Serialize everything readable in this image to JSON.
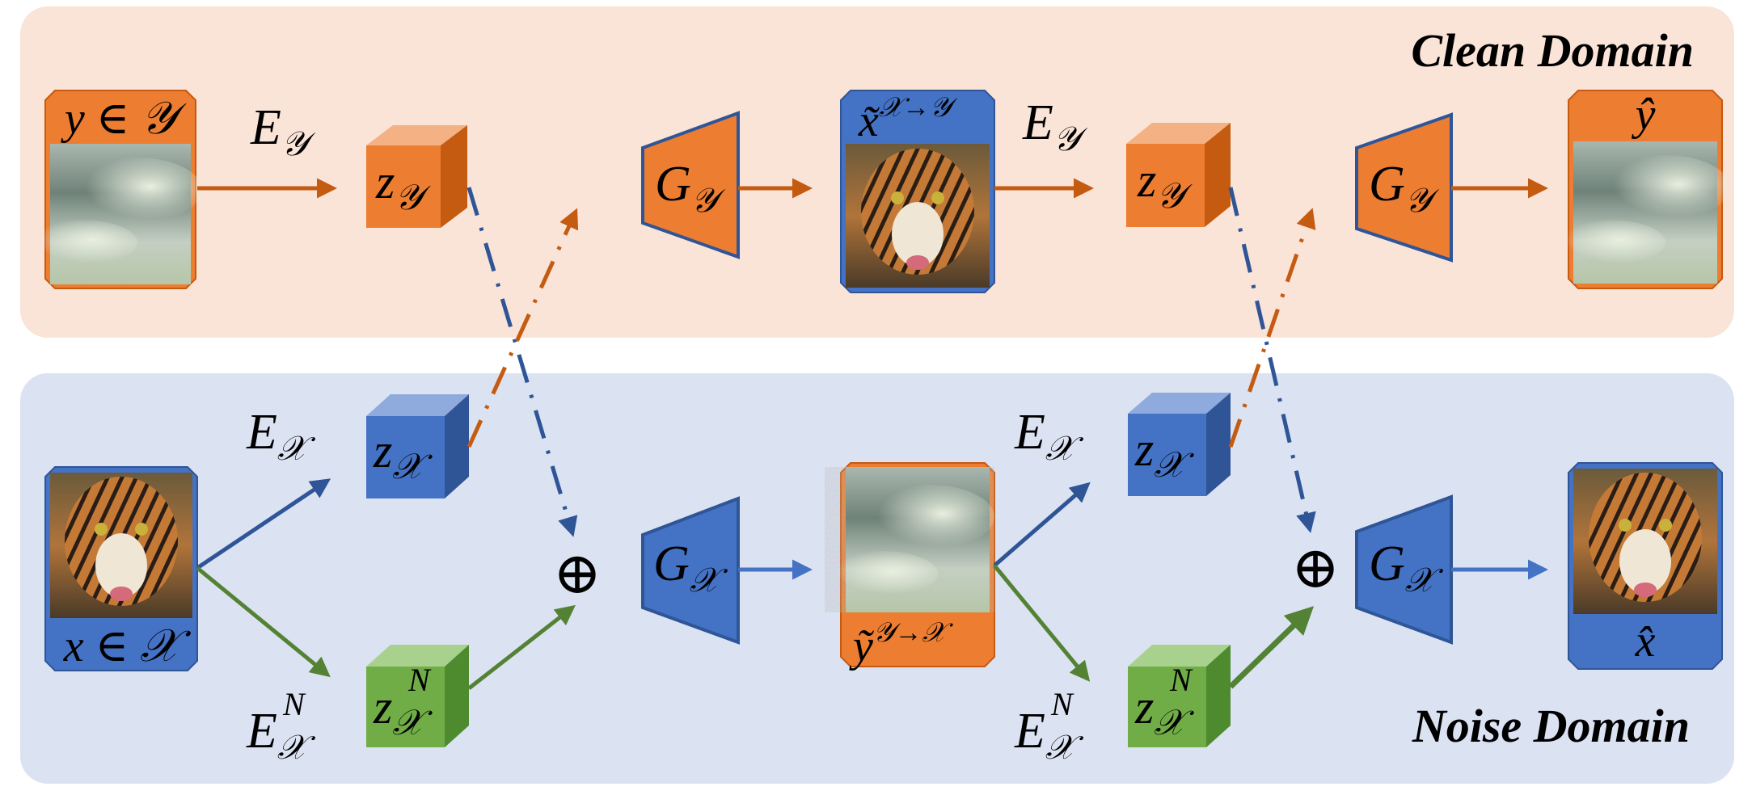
{
  "panels": {
    "clean_domain_label": "Clean Domain",
    "noise_domain_label": "Noise Domain"
  },
  "colors": {
    "clean_bg": "#fae4d7",
    "noise_bg": "#dbe2f2",
    "orange": "#ed7d31",
    "orange_dark": "#c55a11",
    "orange_light": "#f4b183",
    "blue": "#4472c4",
    "blue_dark": "#2f5597",
    "blue_light": "#8faadc",
    "green": "#70ad47",
    "green_dark": "#4e8a2e",
    "green_light": "#a9d18e"
  },
  "labels": {
    "y_in_Y": "y ∈ 𝒴",
    "x_in_X": "x ∈ 𝒳",
    "x_tilde": "x̃",
    "x_tilde_sup": "𝒳→𝒴",
    "y_tilde": "ỹ",
    "y_tilde_sup": "𝒴→𝒳",
    "y_hat": "ŷ",
    "x_hat": "x̂",
    "E": "E",
    "G": "G",
    "z": "z",
    "sub_Y": "𝒴",
    "sub_X": "𝒳",
    "sup_N": "N",
    "oplus": "⊕"
  },
  "images": {
    "sky": "clean-sky-image",
    "tiger": "tiger-image",
    "noisy_sky": "noisy-sky-image",
    "noisy_tiger": "noisy-tiger-image"
  }
}
